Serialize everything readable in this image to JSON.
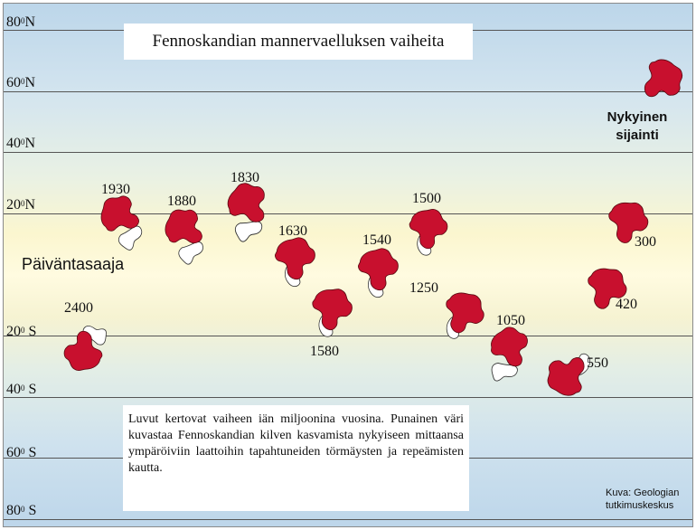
{
  "title": "Fennoskandian mannervaelluksen vaiheita",
  "latitudes": [
    {
      "value": "80",
      "hemisphere": "N"
    },
    {
      "value": "60",
      "hemisphere": "N"
    },
    {
      "value": "40",
      "hemisphere": "N"
    },
    {
      "value": "20",
      "hemisphere": "N"
    },
    {
      "value": "20",
      "hemisphere": " S"
    },
    {
      "value": "40",
      "hemisphere": " S"
    },
    {
      "value": "60",
      "hemisphere": " S"
    },
    {
      "value": "80",
      "hemisphere": " S"
    }
  ],
  "equator_label": "Päiväntasaaja",
  "stages": [
    {
      "age": "2400"
    },
    {
      "age": "1930"
    },
    {
      "age": "1880"
    },
    {
      "age": "1830"
    },
    {
      "age": "1630"
    },
    {
      "age": "1580"
    },
    {
      "age": "1540"
    },
    {
      "age": "1500"
    },
    {
      "age": "1250"
    },
    {
      "age": "1050"
    },
    {
      "age": "550"
    },
    {
      "age": "420"
    },
    {
      "age": "300"
    }
  ],
  "present": {
    "line1": "Nykyinen",
    "line2": "sijainti"
  },
  "note": "Luvut kertovat vaiheen iän miljoonina vuosina. Punainen väri kuvastaa Fennoskandian kilven kasvamista nykyiseen mittaansa ympäröiviin laattoihin tapahtuneiden törmäysten ja repeämisten kautta.",
  "credit": {
    "line1": "Kuva: Geologian",
    "line2": "tutkimuskeskus"
  },
  "colors": {
    "shield": "#c8102e",
    "outline": "#ffffff",
    "grid": "#555555"
  }
}
